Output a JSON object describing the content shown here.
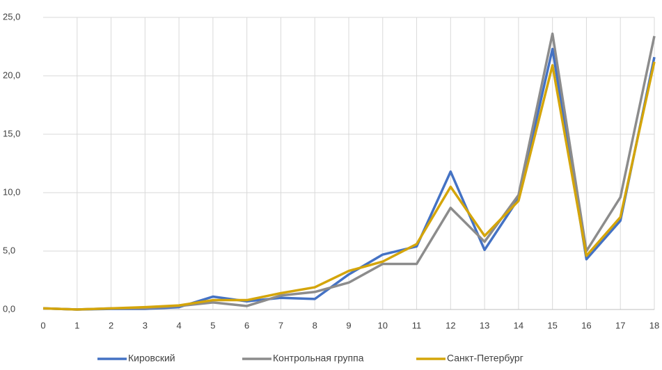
{
  "chart_data": {
    "type": "line",
    "categories": [
      "0",
      "1",
      "2",
      "3",
      "4",
      "5",
      "6",
      "7",
      "8",
      "9",
      "10",
      "11",
      "12",
      "13",
      "14",
      "15",
      "16",
      "17",
      "18"
    ],
    "series": [
      {
        "name": "Кировский",
        "color": "#4472c4",
        "values": [
          0.1,
          0,
          0.05,
          0.05,
          0.2,
          1.1,
          0.7,
          1.0,
          0.9,
          3.0,
          4.7,
          5.4,
          11.8,
          5.1,
          9.5,
          22.3,
          4.3,
          7.6,
          21.6
        ]
      },
      {
        "name": "Контрольная группа",
        "color": "#8c8c8c",
        "values": [
          0.1,
          0,
          0.1,
          0.1,
          0.3,
          0.6,
          0.3,
          1.2,
          1.5,
          2.3,
          3.9,
          3.9,
          8.7,
          5.8,
          9.8,
          23.6,
          5.0,
          9.6,
          23.4
        ]
      },
      {
        "name": "Санкт-Петербург",
        "color": "#d4a50a",
        "values": [
          0.1,
          0,
          0.1,
          0.2,
          0.35,
          0.8,
          0.8,
          1.4,
          1.9,
          3.3,
          4.1,
          5.6,
          10.5,
          6.3,
          9.3,
          20.9,
          4.6,
          7.9,
          21.2
        ]
      }
    ],
    "ylim": [
      0,
      25
    ],
    "yticks": [
      {
        "value": 0,
        "label": "0,0"
      },
      {
        "value": 5,
        "label": "5,0"
      },
      {
        "value": 10,
        "label": "10,0"
      },
      {
        "value": 15,
        "label": "15,0"
      },
      {
        "value": 20,
        "label": "20,0"
      },
      {
        "value": 25,
        "label": "25,0"
      }
    ],
    "grid": true,
    "legend": "bottom"
  }
}
